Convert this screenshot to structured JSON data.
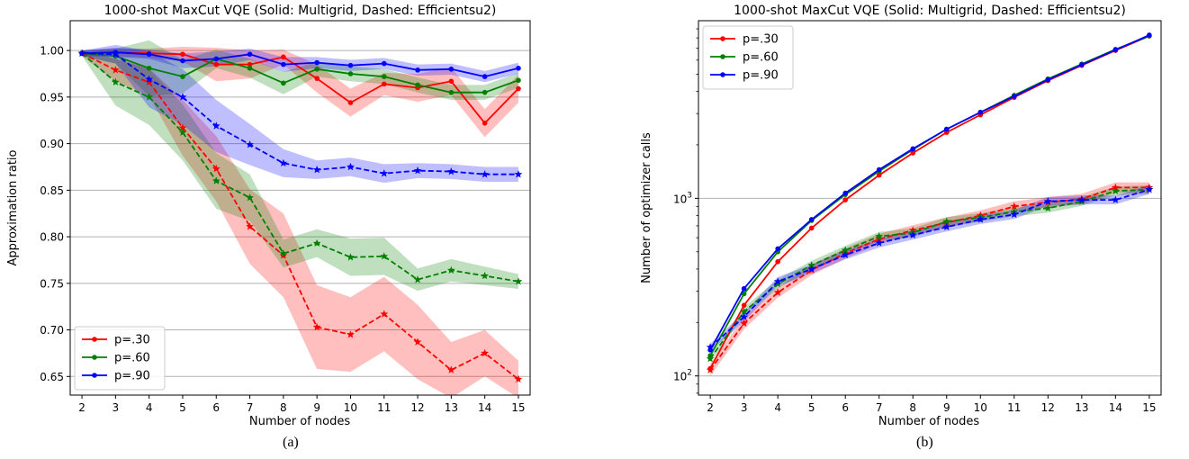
{
  "captions": [
    "(a)",
    "(b)"
  ],
  "chart_data": [
    {
      "type": "line",
      "title": "1000-shot MaxCut VQE (Solid: Multigrid, Dashed: Efficientsu2)",
      "xlabel": "Number of nodes",
      "ylabel": "Approximation ratio",
      "x": [
        2,
        3,
        4,
        5,
        6,
        7,
        8,
        9,
        10,
        11,
        12,
        13,
        14,
        15
      ],
      "xticks": [
        "2",
        "3",
        "4",
        "5",
        "6",
        "7",
        "8",
        "9",
        "10",
        "11",
        "12",
        "13",
        "14",
        "15"
      ],
      "ylim": [
        0.63,
        1.032
      ],
      "yticks": [
        "0.65",
        "0.70",
        "0.75",
        "0.80",
        "0.85",
        "0.90",
        "0.95",
        "1.00"
      ],
      "yscale": "linear",
      "grid": "y",
      "legend_placement": "lower-left",
      "legend": [
        "p=.30",
        "p=.60",
        "p=.90"
      ],
      "colors": {
        "p=.30": "#ff0000",
        "p=.60": "#008000",
        "p=.90": "#0000ff"
      },
      "series": [
        {
          "name": "p=.30",
          "style": "solid",
          "marker": "dot",
          "color": "#ff0000",
          "values": [
            0.997,
            0.998,
            0.997,
            0.996,
            0.985,
            0.985,
            0.993,
            0.97,
            0.944,
            0.964,
            0.96,
            0.967,
            0.922,
            0.959
          ],
          "band": [
            0.003,
            0.004,
            0.005,
            0.008,
            0.018,
            0.015,
            0.008,
            0.015,
            0.015,
            0.012,
            0.015,
            0.015,
            0.015,
            0.015
          ]
        },
        {
          "name": "p=.60",
          "style": "solid",
          "marker": "dot",
          "color": "#008000",
          "values": [
            0.997,
            0.994,
            0.981,
            0.972,
            0.991,
            0.981,
            0.965,
            0.98,
            0.975,
            0.972,
            0.963,
            0.955,
            0.955,
            0.968
          ],
          "band": [
            0.003,
            0.008,
            0.03,
            0.018,
            0.01,
            0.01,
            0.012,
            0.008,
            0.008,
            0.008,
            0.008,
            0.008,
            0.008,
            0.008
          ]
        },
        {
          "name": "p=.90",
          "style": "solid",
          "marker": "dot",
          "color": "#0000ff",
          "values": [
            0.997,
            0.998,
            0.996,
            0.989,
            0.991,
            0.996,
            0.985,
            0.987,
            0.984,
            0.986,
            0.979,
            0.98,
            0.972,
            0.981
          ],
          "band": [
            0.003,
            0.005,
            0.005,
            0.008,
            0.008,
            0.006,
            0.008,
            0.006,
            0.006,
            0.006,
            0.006,
            0.006,
            0.006,
            0.006
          ]
        },
        {
          "name": "p=.30",
          "style": "dashed",
          "marker": "star",
          "color": "#ff0000",
          "values": [
            0.997,
            0.979,
            0.966,
            0.917,
            0.873,
            0.811,
            0.78,
            0.703,
            0.695,
            0.717,
            0.687,
            0.657,
            0.675,
            0.647
          ],
          "band": [
            0.003,
            0.012,
            0.015,
            0.03,
            0.035,
            0.04,
            0.045,
            0.045,
            0.04,
            0.04,
            0.04,
            0.03,
            0.025,
            0.02
          ]
        },
        {
          "name": "p=.60",
          "style": "dashed",
          "marker": "star",
          "color": "#008000",
          "values": [
            0.997,
            0.966,
            0.95,
            0.912,
            0.86,
            0.842,
            0.782,
            0.793,
            0.778,
            0.779,
            0.754,
            0.764,
            0.758,
            0.752
          ],
          "band": [
            0.003,
            0.025,
            0.03,
            0.03,
            0.03,
            0.025,
            0.015,
            0.015,
            0.02,
            0.02,
            0.012,
            0.012,
            0.01,
            0.008
          ]
        },
        {
          "name": "p=.90",
          "style": "dashed",
          "marker": "star",
          "color": "#0000ff",
          "values": [
            0.997,
            0.996,
            0.969,
            0.95,
            0.919,
            0.899,
            0.879,
            0.872,
            0.875,
            0.868,
            0.871,
            0.87,
            0.867,
            0.867
          ],
          "band": [
            0.003,
            0.01,
            0.03,
            0.03,
            0.028,
            0.022,
            0.015,
            0.01,
            0.01,
            0.01,
            0.008,
            0.008,
            0.008,
            0.008
          ]
        }
      ]
    },
    {
      "type": "line",
      "title": "1000-shot MaxCut VQE (Solid: Multigrid, Dashed: Efficientsu2)",
      "xlabel": "Number of nodes",
      "ylabel": "Number of optimizer calls",
      "x": [
        2,
        3,
        4,
        5,
        6,
        7,
        8,
        9,
        10,
        11,
        12,
        13,
        14,
        15
      ],
      "xticks": [
        "2",
        "3",
        "4",
        "5",
        "6",
        "7",
        "8",
        "9",
        "10",
        "11",
        "12",
        "13",
        "14",
        "15"
      ],
      "ylim": [
        78,
        10000
      ],
      "yscale": "log",
      "yticks": [
        {
          "value": 100,
          "base": "10",
          "exp": "2"
        },
        {
          "value": 1000,
          "base": "10",
          "exp": "3"
        }
      ],
      "grid": "y",
      "legend_placement": "top-left",
      "legend": [
        "p=.30",
        "p=.60",
        "p=.90"
      ],
      "colors": {
        "p=.30": "#ff0000",
        "p=.60": "#008000",
        "p=.90": "#0000ff"
      },
      "series": [
        {
          "name": "p=.30",
          "style": "solid",
          "marker": "dot",
          "color": "#ff0000",
          "values": [
            110,
            250,
            440,
            680,
            980,
            1350,
            1800,
            2350,
            2950,
            3700,
            4600,
            5600,
            6800,
            8200
          ],
          "band": [
            0,
            0,
            0,
            0,
            0,
            0,
            0,
            0,
            0,
            0,
            0,
            0,
            0,
            0
          ]
        },
        {
          "name": "p=.60",
          "style": "solid",
          "marker": "dot",
          "color": "#008000",
          "values": [
            130,
            290,
            500,
            750,
            1050,
            1420,
            1880,
            2450,
            3050,
            3800,
            4700,
            5700,
            6900,
            8200
          ],
          "band": [
            0,
            0,
            0,
            0,
            0,
            0,
            0,
            0,
            0,
            0,
            0,
            0,
            0,
            0
          ]
        },
        {
          "name": "p=.90",
          "style": "solid",
          "marker": "dot",
          "color": "#0000ff",
          "values": [
            140,
            310,
            520,
            760,
            1070,
            1450,
            1900,
            2450,
            3050,
            3750,
            4650,
            5650,
            6850,
            8300
          ],
          "band": [
            0,
            0,
            0,
            0,
            0,
            0,
            0,
            0,
            0,
            0,
            0,
            0,
            0,
            0
          ]
        },
        {
          "name": "p=.30",
          "style": "dashed",
          "marker": "star",
          "color": "#ff0000",
          "values": [
            108,
            198,
            295,
            395,
            490,
            590,
            660,
            730,
            800,
            900,
            950,
            990,
            1150,
            1150
          ],
          "band": [
            0.08,
            0.08,
            0.07,
            0.07,
            0.07,
            0.07,
            0.07,
            0.07,
            0.07,
            0.07,
            0.07,
            0.07,
            0.07,
            0.07
          ]
        },
        {
          "name": "p=.60",
          "style": "dashed",
          "marker": "star",
          "color": "#008000",
          "values": [
            125,
            230,
            330,
            420,
            510,
            610,
            640,
            740,
            780,
            840,
            880,
            960,
            1100,
            1120
          ],
          "band": [
            0.05,
            0.06,
            0.06,
            0.06,
            0.06,
            0.06,
            0.06,
            0.06,
            0.06,
            0.06,
            0.06,
            0.06,
            0.06,
            0.06
          ]
        },
        {
          "name": "p=.90",
          "style": "dashed",
          "marker": "star",
          "color": "#0000ff",
          "values": [
            145,
            215,
            340,
            400,
            480,
            560,
            620,
            690,
            760,
            810,
            960,
            980,
            980,
            1120
          ],
          "band": [
            0.05,
            0.06,
            0.06,
            0.06,
            0.06,
            0.06,
            0.06,
            0.06,
            0.06,
            0.06,
            0.06,
            0.06,
            0.06,
            0.06
          ]
        }
      ]
    }
  ]
}
